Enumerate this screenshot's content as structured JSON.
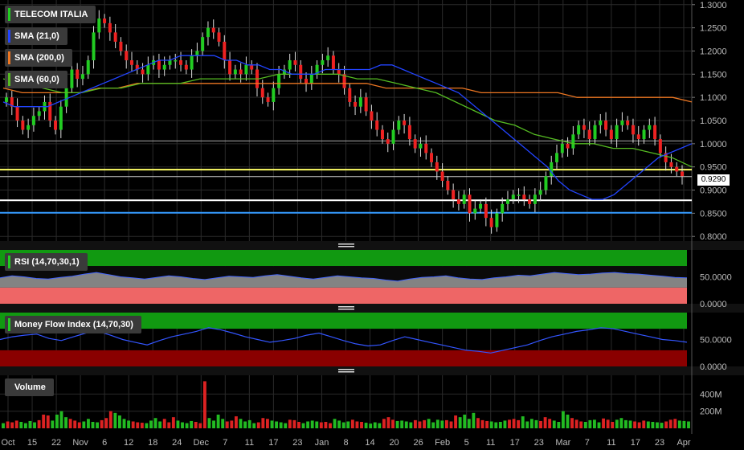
{
  "colors": {
    "background": "#000000",
    "grid": "#2a2a2a",
    "up": "#22cc22",
    "down": "#ee2222",
    "sma21": "#2244ff",
    "sma200": "#ee7722",
    "sma60": "#55bb22",
    "hline_yellow": "#ffff66",
    "hline_white": "#ffffff",
    "hline_blue": "#3399ff"
  },
  "legend": {
    "title": "TELECOM ITALIA",
    "sma21": "SMA (21,0)",
    "sma200": "SMA (200,0)",
    "sma60": "SMA (60,0)"
  },
  "panels": {
    "rsi_label": "RSI (14,70,30,1)",
    "mfi_label": "Money Flow Index (14,70,30)",
    "volume_label": "Volume"
  },
  "price_tag": "0.9290",
  "chart_data": [
    {
      "type": "line",
      "name": "price",
      "subtype": "candlestick",
      "yaxis_ticks": [
        "1.3000",
        "1.2500",
        "1.2000",
        "1.1500",
        "1.1000",
        "1.0500",
        "1.0000",
        "0.9500",
        "0.9000",
        "0.8500",
        "0.8000"
      ],
      "ylim": [
        0.79,
        1.31
      ],
      "x_ticks": [
        "Oct",
        "15",
        "22",
        "Nov",
        "6",
        "12",
        "18",
        "24",
        "Dec",
        "7",
        "11",
        "17",
        "23",
        "Jan",
        "8",
        "14",
        "20",
        "26",
        "Feb",
        "5",
        "11",
        "17",
        "23",
        "Mar",
        "7",
        "11",
        "17",
        "23",
        "Apr"
      ],
      "closes": [
        1.1,
        1.08,
        1.05,
        1.03,
        1.04,
        1.06,
        1.07,
        1.09,
        1.05,
        1.03,
        1.08,
        1.12,
        1.16,
        1.14,
        1.15,
        1.18,
        1.24,
        1.27,
        1.26,
        1.24,
        1.22,
        1.2,
        1.18,
        1.17,
        1.16,
        1.15,
        1.17,
        1.18,
        1.16,
        1.17,
        1.18,
        1.18,
        1.17,
        1.16,
        1.19,
        1.2,
        1.23,
        1.25,
        1.24,
        1.22,
        1.18,
        1.15,
        1.16,
        1.15,
        1.17,
        1.16,
        1.12,
        1.1,
        1.09,
        1.12,
        1.15,
        1.16,
        1.18,
        1.17,
        1.14,
        1.13,
        1.15,
        1.17,
        1.18,
        1.19,
        1.16,
        1.15,
        1.12,
        1.09,
        1.08,
        1.1,
        1.07,
        1.05,
        1.03,
        1.01,
        1.0,
        1.03,
        1.05,
        1.04,
        1.01,
        0.99,
        1.0,
        0.98,
        0.96,
        0.94,
        0.92,
        0.9,
        0.88,
        0.87,
        0.89,
        0.85,
        0.86,
        0.87,
        0.84,
        0.82,
        0.85,
        0.87,
        0.88,
        0.89,
        0.89,
        0.88,
        0.87,
        0.89,
        0.9,
        0.93,
        0.96,
        0.98,
        1.0,
        0.99,
        1.02,
        1.04,
        1.03,
        1.01,
        1.04,
        1.05,
        1.03,
        1.01,
        1.04,
        1.05,
        1.04,
        1.02,
        1.01,
        1.03,
        1.04,
        1.01,
        0.98,
        0.96,
        0.95,
        0.94,
        0.93
      ],
      "sma21": [
        1.09,
        1.08,
        1.08,
        1.08,
        1.08,
        1.09,
        1.1,
        1.11,
        1.12,
        1.13,
        1.14,
        1.15,
        1.16,
        1.17,
        1.18,
        1.18,
        1.19,
        1.19,
        1.19,
        1.19,
        1.18,
        1.18,
        1.17,
        1.17,
        1.16,
        1.16,
        1.15,
        1.15,
        1.15,
        1.16,
        1.16,
        1.16,
        1.16,
        1.16,
        1.17,
        1.17,
        1.16,
        1.15,
        1.14,
        1.13,
        1.12,
        1.11,
        1.09,
        1.07,
        1.05,
        1.03,
        1.01,
        0.99,
        0.97,
        0.95,
        0.92,
        0.9,
        0.89,
        0.88,
        0.88,
        0.89,
        0.91,
        0.93,
        0.95,
        0.97,
        0.98,
        0.99,
        1.0
      ],
      "sma200": [
        1.12,
        1.11,
        1.11,
        1.11,
        1.11,
        1.12,
        1.12,
        1.13,
        1.13,
        1.13,
        1.13,
        1.13,
        1.13,
        1.13,
        1.13,
        1.13,
        1.13,
        1.13,
        1.13,
        1.13,
        1.12,
        1.12,
        1.12,
        1.12,
        1.12,
        1.11,
        1.11,
        1.11,
        1.11,
        1.11,
        1.1,
        1.1,
        1.1,
        1.1,
        1.1,
        1.1,
        1.09
      ],
      "sma60": [
        1.14,
        1.13,
        1.12,
        1.11,
        1.11,
        1.12,
        1.12,
        1.13,
        1.13,
        1.13,
        1.14,
        1.14,
        1.14,
        1.14,
        1.15,
        1.15,
        1.15,
        1.15,
        1.14,
        1.14,
        1.13,
        1.12,
        1.11,
        1.09,
        1.07,
        1.05,
        1.04,
        1.02,
        1.01,
        1.0,
        1.0,
        0.99,
        0.99,
        0.98,
        0.97,
        0.95
      ],
      "hlines": [
        {
          "value": 1.006,
          "color": "#aaaaaa"
        },
        {
          "value": 0.944,
          "color": "#ffff66"
        },
        {
          "value": 0.929,
          "color": "#cccccc"
        },
        {
          "value": 0.878,
          "color": "#ffffff"
        },
        {
          "value": 0.851,
          "color": "#3399ff"
        }
      ]
    },
    {
      "type": "area",
      "name": "RSI",
      "yaxis_ticks": [
        "50.0000",
        "0.0000"
      ],
      "ylim": [
        0,
        100
      ],
      "upper_band": 70,
      "lower_band": 30,
      "values": [
        48,
        52,
        50,
        47,
        46,
        49,
        51,
        55,
        58,
        54,
        50,
        48,
        46,
        49,
        52,
        50,
        47,
        45,
        48,
        51,
        50,
        49,
        52,
        54,
        51,
        48,
        46,
        49,
        52,
        50,
        48,
        47,
        44,
        42,
        46,
        49,
        50,
        52,
        48,
        46,
        45,
        48,
        50,
        53,
        52,
        55,
        58,
        56,
        54,
        55,
        57,
        58,
        56,
        55,
        53,
        51,
        49,
        48
      ]
    },
    {
      "type": "line",
      "name": "Money Flow Index",
      "yaxis_ticks": [
        "50.0000",
        "0.0000"
      ],
      "ylim": [
        0,
        100
      ],
      "upper_band": 70,
      "lower_band": 30,
      "values": [
        50,
        55,
        58,
        60,
        52,
        48,
        55,
        62,
        65,
        58,
        50,
        45,
        40,
        48,
        55,
        60,
        65,
        72,
        68,
        62,
        55,
        50,
        45,
        48,
        52,
        58,
        62,
        55,
        48,
        42,
        38,
        40,
        48,
        55,
        50,
        45,
        40,
        35,
        30,
        28,
        25,
        30,
        35,
        40,
        48,
        55,
        60,
        65,
        68,
        72,
        70,
        65,
        60,
        55,
        50,
        48,
        45
      ]
    },
    {
      "type": "bar",
      "name": "Volume",
      "yaxis_ticks": [
        "400M",
        "200M"
      ],
      "ylim": [
        0,
        620
      ],
      "values": [
        60,
        80,
        70,
        90,
        75,
        60,
        85,
        70,
        95,
        160,
        150,
        90,
        160,
        200,
        130,
        110,
        90,
        70,
        80,
        110,
        75,
        70,
        95,
        120,
        200,
        180,
        150,
        110,
        90,
        80,
        70,
        65,
        60,
        90,
        120,
        80,
        110,
        70,
        130,
        90,
        70,
        60,
        85,
        75,
        60,
        550,
        120,
        90,
        160,
        110,
        80,
        90,
        140,
        110,
        80,
        95,
        60,
        70,
        120,
        110,
        90,
        80,
        70,
        60,
        100,
        95,
        75,
        60,
        80,
        90,
        80,
        70,
        75,
        60,
        110,
        90,
        70,
        80,
        100,
        80,
        75,
        65,
        55,
        70,
        60,
        110,
        130,
        100,
        85,
        90,
        80,
        70,
        95,
        80,
        95,
        110,
        70,
        100,
        90,
        95,
        80,
        150,
        130,
        160,
        110,
        180,
        120,
        95,
        85,
        80,
        70,
        75,
        90,
        100,
        110,
        95,
        140,
        80,
        110,
        95,
        85,
        130,
        110,
        90,
        75,
        200,
        160,
        120,
        100,
        80,
        75,
        95,
        100,
        70,
        115,
        100,
        75,
        100,
        120,
        95,
        90,
        80,
        70,
        90,
        80,
        75,
        70,
        65,
        80,
        100,
        110,
        90,
        85,
        80
      ]
    }
  ]
}
